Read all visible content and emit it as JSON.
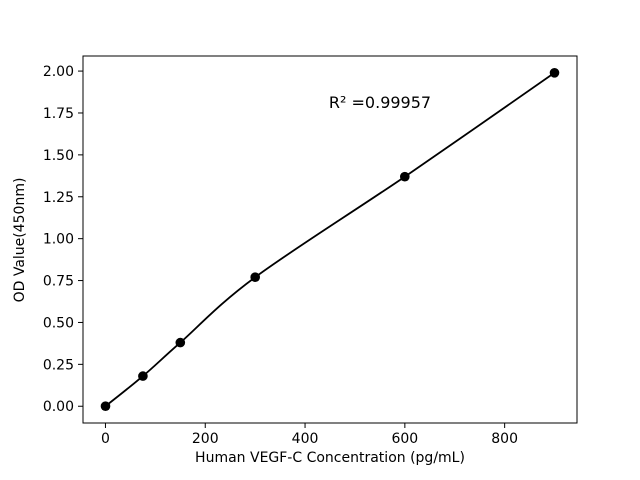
{
  "figure": {
    "background": "#ffffff"
  },
  "chart_data": {
    "type": "scatter",
    "title": "",
    "xlabel": "Human VEGF-C Concentration (pg/mL)",
    "ylabel": "OD Value(450nm)",
    "annotation": "R² =0.99957",
    "series": [
      {
        "name": "standard-curve-points",
        "x": [
          0,
          75,
          150,
          300,
          600,
          900
        ],
        "y": [
          0.0,
          0.18,
          0.38,
          0.77,
          1.37,
          1.99
        ]
      }
    ],
    "fit_line": true,
    "xlim": [
      -45,
      945
    ],
    "ylim": [
      -0.1,
      2.09
    ],
    "xticks": [
      0,
      200,
      400,
      600,
      800
    ],
    "xtick_labels": [
      "0",
      "200",
      "400",
      "600",
      "800"
    ],
    "yticks": [
      0,
      0.25,
      0.5,
      0.75,
      1.0,
      1.25,
      1.5,
      1.75,
      2.0
    ],
    "ytick_labels": [
      "0.00",
      "0.25",
      "0.50",
      "0.75",
      "1.00",
      "1.25",
      "1.50",
      "1.75",
      "2.00"
    ],
    "marker_color": "#000000",
    "line_color": "#000000",
    "grid": false,
    "legend": null
  }
}
